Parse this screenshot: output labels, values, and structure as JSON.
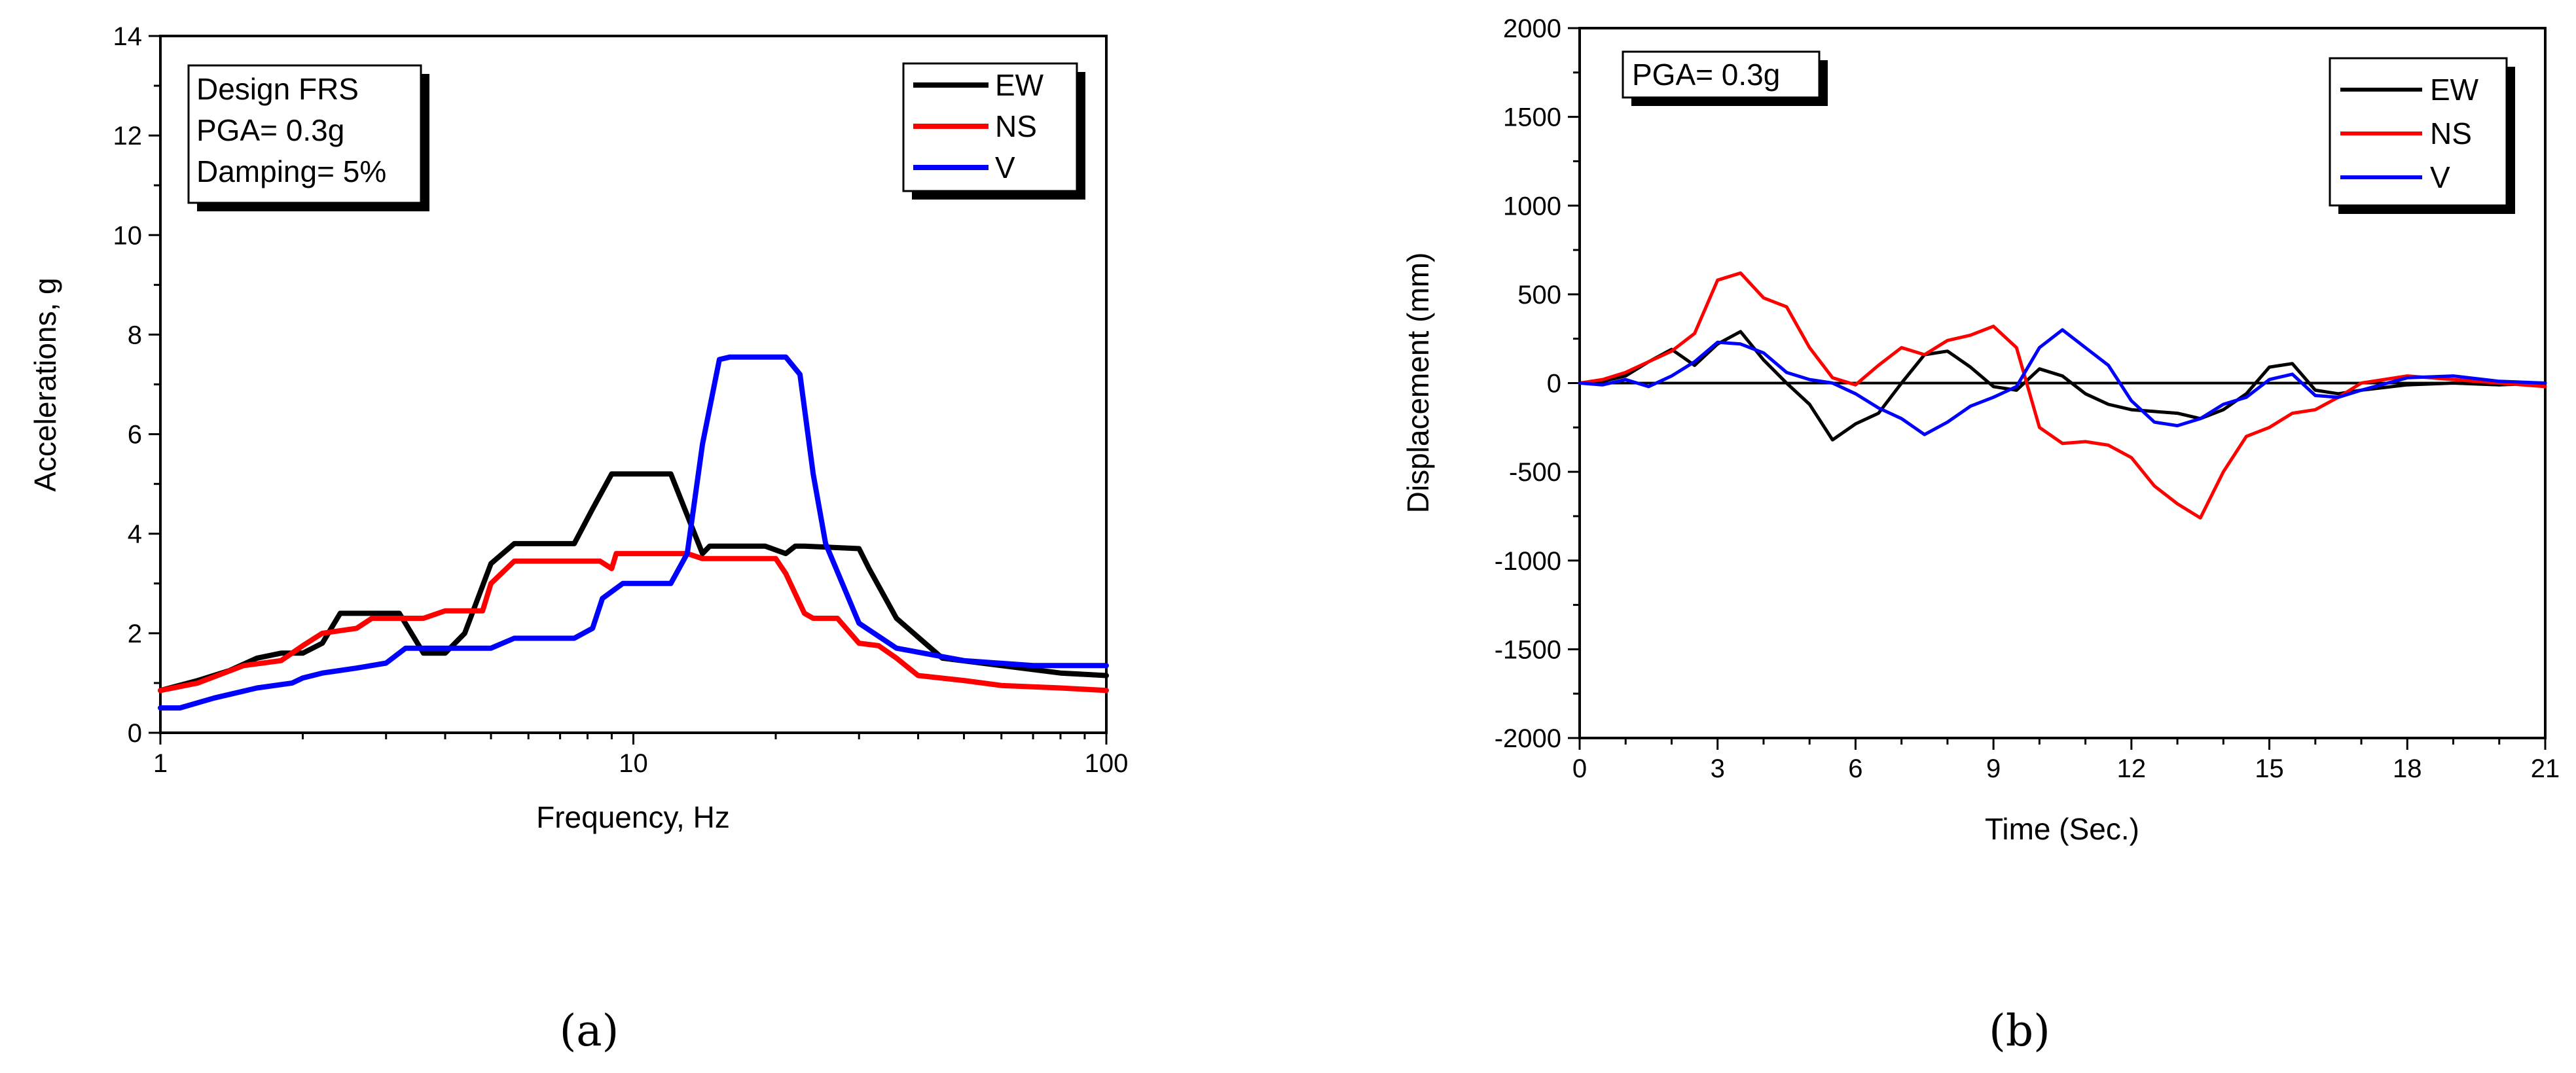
{
  "chart_data": [
    {
      "type": "line",
      "panel_label": "a",
      "xscale": "log",
      "xlim": [
        1,
        100
      ],
      "ylim": [
        0,
        14
      ],
      "xticks": [
        1,
        10,
        100
      ],
      "xtick_labels": [
        "1",
        "10",
        "100"
      ],
      "yticks": [
        0,
        2,
        4,
        6,
        8,
        10,
        12,
        14
      ],
      "ytick_labels": [
        "0",
        "2",
        "4",
        "6",
        "8",
        "10",
        "12",
        "14"
      ],
      "xlabel": "Frequency, Hz",
      "ylabel": "Accelerations, g",
      "annotation": [
        "Design FRS",
        "PGA= 0.3g",
        "Damping= 5%"
      ],
      "legend": [
        "EW",
        "NS",
        "V"
      ],
      "legend_position": "top-right",
      "series": [
        {
          "name": "EW",
          "color": "#000000",
          "x": [
            1,
            1.2,
            1.4,
            1.6,
            1.8,
            2.0,
            2.2,
            2.4,
            3.2,
            3.6,
            4.0,
            4.4,
            5.0,
            5.6,
            7.5,
            8.2,
            9.0,
            12.0,
            14.0,
            14.5,
            19.0,
            21.0,
            22.0,
            23.0,
            30.0,
            31.5,
            36.0,
            45.0,
            60.0,
            80.0,
            100
          ],
          "y": [
            0.85,
            1.05,
            1.25,
            1.5,
            1.6,
            1.6,
            1.8,
            2.4,
            2.4,
            1.6,
            1.6,
            2.0,
            3.4,
            3.8,
            3.8,
            4.5,
            5.2,
            5.2,
            3.6,
            3.75,
            3.75,
            3.6,
            3.75,
            3.75,
            3.7,
            3.3,
            2.3,
            1.5,
            1.35,
            1.2,
            1.15
          ]
        },
        {
          "name": "NS",
          "color": "#ff0000",
          "x": [
            1,
            1.2,
            1.5,
            1.8,
            2.0,
            2.2,
            2.6,
            2.8,
            3.6,
            4.0,
            4.8,
            5.0,
            5.6,
            8.5,
            9.0,
            9.2,
            13.0,
            14.0,
            20.0,
            21.0,
            23.0,
            24.0,
            27.0,
            30.0,
            33.0,
            36.0,
            40.0,
            50.0,
            60.0,
            80.0,
            100
          ],
          "y": [
            0.85,
            1.0,
            1.35,
            1.45,
            1.75,
            2.0,
            2.1,
            2.3,
            2.3,
            2.45,
            2.45,
            3.0,
            3.45,
            3.45,
            3.3,
            3.6,
            3.6,
            3.5,
            3.5,
            3.2,
            2.4,
            2.3,
            2.3,
            1.8,
            1.75,
            1.5,
            1.15,
            1.05,
            0.95,
            0.9,
            0.85
          ]
        },
        {
          "name": "V",
          "color": "#0000ff",
          "x": [
            1,
            1.1,
            1.3,
            1.6,
            1.9,
            2.0,
            2.2,
            2.6,
            3.0,
            3.3,
            4.0,
            5.0,
            5.6,
            7.5,
            8.2,
            8.6,
            9.5,
            12.0,
            13.0,
            14.0,
            15.2,
            16.0,
            21.0,
            22.5,
            24.0,
            25.5,
            30.0,
            36.0,
            50.0,
            70.0,
            100
          ],
          "y": [
            0.5,
            0.5,
            0.7,
            0.9,
            1.0,
            1.1,
            1.2,
            1.3,
            1.4,
            1.7,
            1.7,
            1.7,
            1.9,
            1.9,
            2.1,
            2.7,
            3.0,
            3.0,
            3.6,
            5.8,
            7.5,
            7.55,
            7.55,
            7.2,
            5.2,
            3.8,
            2.2,
            1.7,
            1.45,
            1.35,
            1.35
          ]
        }
      ]
    },
    {
      "type": "line",
      "panel_label": "b",
      "xscale": "linear",
      "xlim": [
        0,
        21
      ],
      "ylim": [
        -2000,
        2000
      ],
      "xticks": [
        0,
        3,
        6,
        9,
        12,
        15,
        18,
        21
      ],
      "xtick_labels": [
        "0",
        "3",
        "6",
        "9",
        "12",
        "15",
        "18",
        "21"
      ],
      "yticks": [
        -2000,
        -1500,
        -1000,
        -500,
        0,
        500,
        1000,
        1500,
        2000
      ],
      "ytick_labels": [
        "-2000",
        "-1500",
        "-1000",
        "-500",
        "0",
        "500",
        "1000",
        "1500",
        "2000"
      ],
      "xlabel": "Time (Sec.)",
      "ylabel": "Displacement (mm)",
      "annotation": [
        "PGA= 0.3g"
      ],
      "legend": [
        "EW",
        "NS",
        "V"
      ],
      "legend_position": "top-right",
      "series": [
        {
          "name": "EW",
          "color": "#000000",
          "x": [
            0,
            0.5,
            1.0,
            1.5,
            2.0,
            2.5,
            3.0,
            3.5,
            4.0,
            4.5,
            5.0,
            5.5,
            6.0,
            6.5,
            7.0,
            7.5,
            8.0,
            8.5,
            9.0,
            9.5,
            10.0,
            10.5,
            11.0,
            11.5,
            12.0,
            12.5,
            13.0,
            13.5,
            14.0,
            14.5,
            15.0,
            15.5,
            16.0,
            16.5,
            17.0,
            18.0,
            19.0,
            20.0,
            21.0
          ],
          "y": [
            0,
            10,
            40,
            120,
            190,
            100,
            220,
            290,
            130,
            0,
            -120,
            -320,
            -230,
            -170,
            0,
            160,
            180,
            90,
            -20,
            -40,
            80,
            40,
            -60,
            -120,
            -150,
            -160,
            -170,
            -200,
            -150,
            -60,
            90,
            110,
            -40,
            -60,
            -40,
            -10,
            0,
            -10,
            0
          ]
        },
        {
          "name": "NS",
          "color": "#ff0000",
          "x": [
            0,
            0.5,
            1.0,
            1.5,
            2.0,
            2.5,
            3.0,
            3.5,
            4.0,
            4.5,
            5.0,
            5.5,
            6.0,
            6.5,
            7.0,
            7.5,
            8.0,
            8.5,
            9.0,
            9.5,
            10.0,
            10.5,
            11.0,
            11.5,
            12.0,
            12.5,
            13.0,
            13.5,
            14.0,
            14.5,
            15.0,
            15.5,
            16.0,
            16.5,
            17.0,
            18.0,
            19.0,
            20.0,
            21.0
          ],
          "y": [
            0,
            20,
            60,
            120,
            180,
            280,
            580,
            620,
            480,
            430,
            200,
            30,
            -10,
            100,
            200,
            160,
            240,
            270,
            320,
            200,
            -250,
            -340,
            -330,
            -350,
            -420,
            -580,
            -680,
            -760,
            -500,
            -300,
            -250,
            -170,
            -150,
            -80,
            0,
            40,
            20,
            0,
            -20
          ]
        },
        {
          "name": "V",
          "color": "#0000ff",
          "x": [
            0,
            0.5,
            1.0,
            1.5,
            2.0,
            2.5,
            3.0,
            3.5,
            4.0,
            4.5,
            5.0,
            5.5,
            6.0,
            6.5,
            7.0,
            7.5,
            8.0,
            8.5,
            9.0,
            9.5,
            10.0,
            10.5,
            11.0,
            11.5,
            12.0,
            12.5,
            13.0,
            13.5,
            14.0,
            14.5,
            15.0,
            15.5,
            16.0,
            16.5,
            17.0,
            18.0,
            19.0,
            20.0,
            21.0
          ],
          "y": [
            0,
            -10,
            20,
            -20,
            40,
            120,
            230,
            220,
            170,
            60,
            20,
            0,
            -60,
            -140,
            -200,
            -290,
            -220,
            -130,
            -80,
            -20,
            200,
            300,
            200,
            100,
            -100,
            -220,
            -240,
            -200,
            -120,
            -80,
            20,
            50,
            -70,
            -80,
            -40,
            30,
            40,
            10,
            0
          ]
        }
      ]
    }
  ],
  "captions": {
    "a": "(a)",
    "b": "(b)"
  }
}
